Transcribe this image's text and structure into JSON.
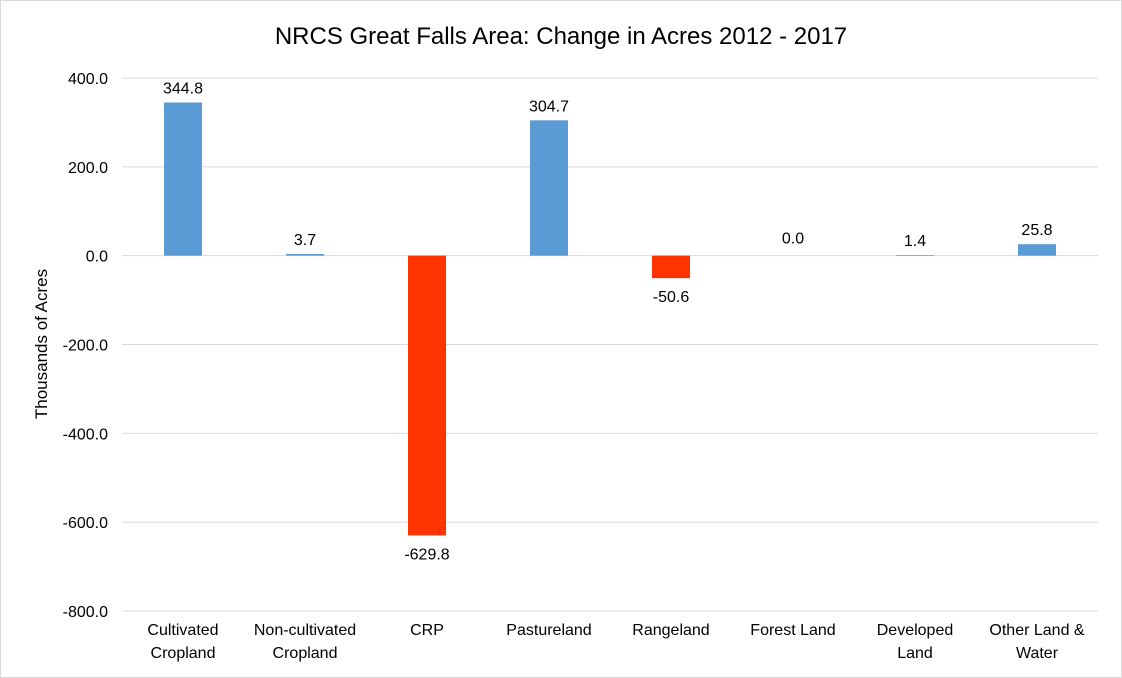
{
  "chart_data": {
    "type": "bar",
    "title": "NRCS Great Falls Area: Change in Acres 2012 - 2017",
    "xlabel": "",
    "ylabel": "Thousands of Acres",
    "ylim": [
      -800,
      400
    ],
    "yticks": [
      400,
      200,
      0,
      -200,
      -400,
      -600,
      -800
    ],
    "ytick_labels": [
      "400.0",
      "200.0",
      "0.0",
      "-200.0",
      "-400.0",
      "-600.0",
      "-800.0"
    ],
    "categories": [
      [
        "Cultivated",
        "Cropland"
      ],
      [
        "Non-cultivated",
        "Cropland"
      ],
      [
        "CRP"
      ],
      [
        "Pastureland"
      ],
      [
        "Rangeland"
      ],
      [
        "Forest Land"
      ],
      [
        "Developed",
        "Land"
      ],
      [
        "Other Land &",
        "Water"
      ]
    ],
    "values": [
      344.8,
      3.7,
      -629.8,
      304.7,
      -50.6,
      0.0,
      1.4,
      25.8
    ],
    "data_labels": [
      "344.8",
      "3.7",
      "-629.8",
      "304.7",
      "-50.6",
      "0.0",
      "1.4",
      "25.8"
    ],
    "grid": true,
    "legend": "none",
    "colors": {
      "positive": "#5b9bd5",
      "negative": "#ff3300"
    }
  }
}
